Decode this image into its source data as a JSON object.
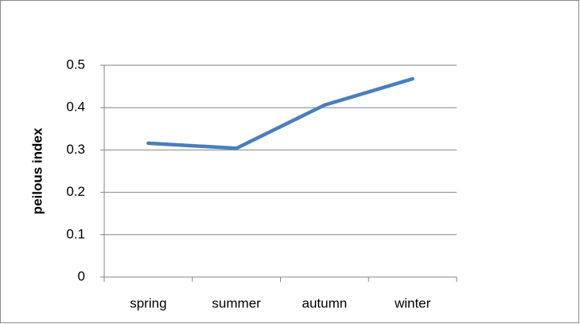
{
  "chart_data": {
    "type": "line",
    "ylabel": "peilous index",
    "categories": [
      "spring",
      "summer",
      "autumn",
      "winter"
    ],
    "series": [
      {
        "name": "peilous index",
        "color": "#4a7ebb",
        "values": [
          0.316,
          0.304,
          0.406,
          0.468
        ]
      }
    ],
    "ylim": [
      0,
      0.5
    ],
    "yticks": [
      0,
      0.1,
      0.2,
      0.3,
      0.4,
      0.5
    ],
    "grid": true
  }
}
